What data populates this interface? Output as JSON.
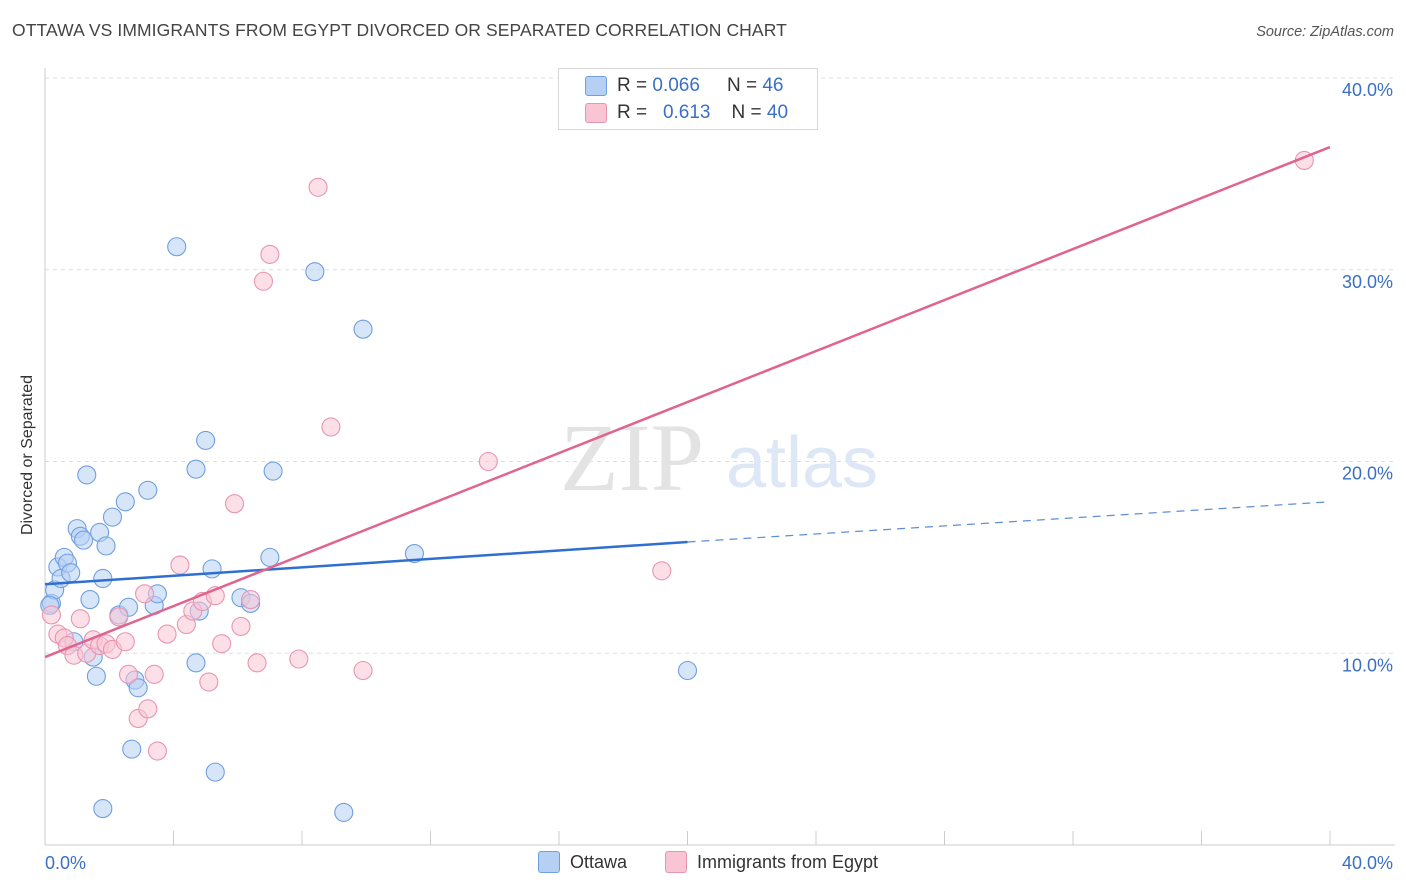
{
  "header": {
    "title": "OTTAWA VS IMMIGRANTS FROM EGYPT DIVORCED OR SEPARATED CORRELATION CHART",
    "source": "Source: ZipAtlas.com"
  },
  "watermark": {
    "zip": "ZIP",
    "atlas": "atlas"
  },
  "legend_top": [
    {
      "r_label": "R =",
      "r_value": "0.066",
      "n_label": "N =",
      "n_value": "46",
      "color": "#a9c8f5"
    },
    {
      "r_label": "R =",
      "r_value": "0.613",
      "n_label": "N =",
      "n_value": "40",
      "color": "#f7b9cd"
    }
  ],
  "chart_data": {
    "type": "scatter",
    "title": "OTTAWA VS IMMIGRANTS FROM EGYPT DIVORCED OR SEPARATED CORRELATION CHART",
    "xlabel": "",
    "ylabel": "Divorced or Separated",
    "xlim": [
      0,
      40
    ],
    "ylim": [
      0,
      40
    ],
    "x_tick_labels": [
      "0.0%",
      "40.0%"
    ],
    "y_tick_labels": [
      "10.0%",
      "20.0%",
      "30.0%",
      "40.0%"
    ],
    "y_ticks": [
      10,
      20,
      30,
      40
    ],
    "grid": true,
    "legend_position": "bottom",
    "series": [
      {
        "name": "Ottawa",
        "color": "#6f9fe0",
        "fill": "#b6d0f4",
        "points": [
          [
            0.2,
            12.6
          ],
          [
            0.3,
            13.3
          ],
          [
            0.4,
            14.5
          ],
          [
            0.5,
            13.9
          ],
          [
            0.6,
            15.0
          ],
          [
            0.7,
            14.7
          ],
          [
            0.8,
            14.2
          ],
          [
            0.9,
            10.6
          ],
          [
            1.0,
            16.5
          ],
          [
            1.1,
            16.1
          ],
          [
            1.2,
            15.9
          ],
          [
            1.3,
            19.3
          ],
          [
            1.4,
            12.8
          ],
          [
            1.5,
            9.8
          ],
          [
            1.6,
            8.8
          ],
          [
            1.7,
            16.3
          ],
          [
            1.8,
            13.9
          ],
          [
            1.9,
            15.6
          ],
          [
            2.1,
            17.1
          ],
          [
            2.3,
            12.0
          ],
          [
            2.5,
            17.9
          ],
          [
            2.6,
            12.4
          ],
          [
            2.7,
            5.0
          ],
          [
            2.8,
            8.6
          ],
          [
            2.9,
            8.2
          ],
          [
            3.2,
            18.5
          ],
          [
            3.4,
            12.5
          ],
          [
            3.5,
            13.1
          ],
          [
            4.1,
            31.2
          ],
          [
            4.7,
            9.5
          ],
          [
            4.7,
            19.6
          ],
          [
            4.8,
            12.2
          ],
          [
            5.0,
            21.1
          ],
          [
            5.2,
            14.4
          ],
          [
            5.3,
            3.8
          ],
          [
            6.1,
            12.9
          ],
          [
            6.4,
            12.6
          ],
          [
            7.0,
            15.0
          ],
          [
            7.1,
            19.5
          ],
          [
            8.4,
            29.9
          ],
          [
            9.3,
            1.7
          ],
          [
            9.9,
            26.9
          ],
          [
            11.5,
            15.2
          ],
          [
            20.0,
            9.1
          ],
          [
            1.8,
            1.9
          ],
          [
            0.15,
            12.5
          ]
        ],
        "trend": {
          "x0": 0,
          "y0": 13.6,
          "x1": 20.0,
          "y1": 15.8,
          "dash_to_x": 40,
          "dash_to_y": 17.9
        }
      },
      {
        "name": "Immigrants from Egypt",
        "color": "#e895b2",
        "fill": "#f9c4d4",
        "points": [
          [
            0.2,
            12.0
          ],
          [
            0.4,
            11.0
          ],
          [
            0.6,
            10.8
          ],
          [
            0.7,
            10.4
          ],
          [
            0.9,
            9.9
          ],
          [
            1.1,
            11.8
          ],
          [
            1.3,
            10.0
          ],
          [
            1.5,
            10.7
          ],
          [
            1.7,
            10.4
          ],
          [
            1.9,
            10.5
          ],
          [
            2.1,
            10.2
          ],
          [
            2.3,
            11.9
          ],
          [
            2.5,
            10.6
          ],
          [
            2.6,
            8.9
          ],
          [
            2.9,
            6.6
          ],
          [
            3.1,
            13.1
          ],
          [
            3.2,
            7.1
          ],
          [
            3.4,
            8.9
          ],
          [
            3.5,
            4.9
          ],
          [
            3.8,
            11.0
          ],
          [
            4.2,
            14.6
          ],
          [
            4.4,
            11.5
          ],
          [
            4.6,
            12.2
          ],
          [
            4.9,
            12.7
          ],
          [
            5.1,
            8.5
          ],
          [
            5.3,
            13.0
          ],
          [
            5.5,
            10.5
          ],
          [
            5.9,
            17.8
          ],
          [
            6.1,
            11.4
          ],
          [
            6.4,
            12.8
          ],
          [
            6.6,
            9.5
          ],
          [
            6.8,
            29.4
          ],
          [
            7.0,
            30.8
          ],
          [
            7.9,
            9.7
          ],
          [
            8.5,
            34.3
          ],
          [
            8.9,
            21.8
          ],
          [
            9.9,
            9.1
          ],
          [
            13.8,
            20.0
          ],
          [
            19.2,
            14.3
          ],
          [
            39.2,
            35.7
          ]
        ],
        "trend": {
          "x0": 0,
          "y0": 9.8,
          "x1": 40,
          "y1": 36.4
        }
      }
    ]
  }
}
